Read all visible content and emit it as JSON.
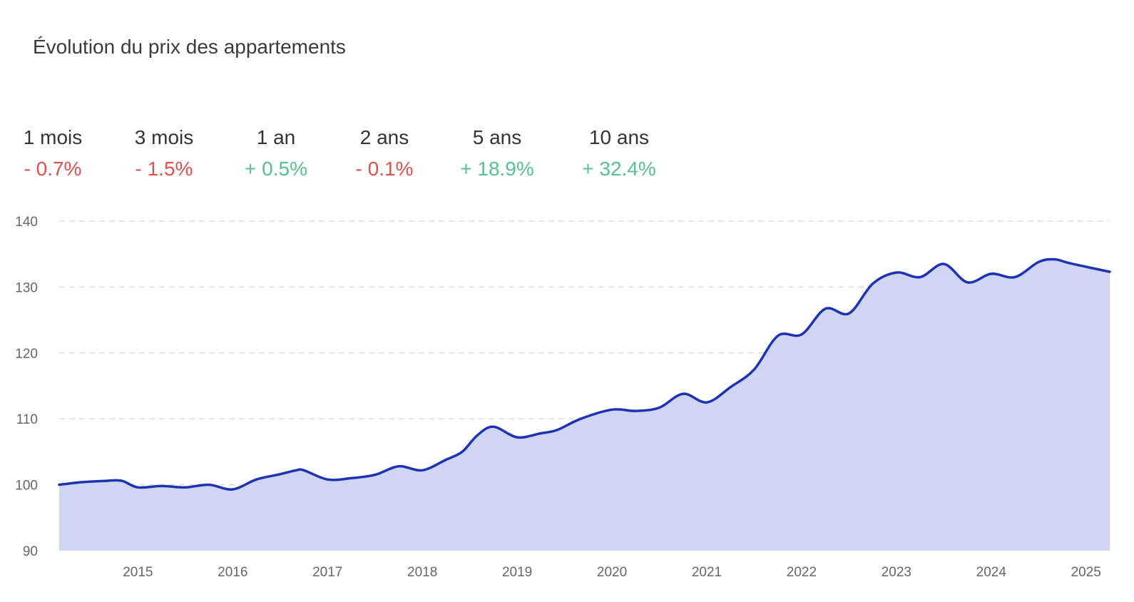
{
  "title": "Évolution du prix des appartements",
  "colors": {
    "negative": "#d9534f",
    "positive": "#5bbf8f",
    "line": "#1e32b4",
    "area": "#d0d5f1",
    "grid": "#dcdcdc"
  },
  "periods": [
    {
      "label": "1 mois",
      "change": "- 0.7%",
      "trend": "negative"
    },
    {
      "label": "3 mois",
      "change": "- 1.5%",
      "trend": "negative"
    },
    {
      "label": "1 an",
      "change": "+ 0.5%",
      "trend": "positive"
    },
    {
      "label": "2 ans",
      "change": "- 0.1%",
      "trend": "negative"
    },
    {
      "label": "5 ans",
      "change": "+ 18.9%",
      "trend": "positive"
    },
    {
      "label": "10 ans",
      "change": "+ 32.4%",
      "trend": "positive"
    }
  ],
  "chart_data": {
    "type": "area",
    "title": "Évolution du prix des appartements",
    "xlabel": "",
    "ylabel": "",
    "ylim": [
      90,
      140
    ],
    "yticks": [
      90,
      100,
      110,
      120,
      130,
      140
    ],
    "xticks": [
      "2015",
      "2016",
      "2017",
      "2018",
      "2019",
      "2020",
      "2021",
      "2022",
      "2023",
      "2024",
      "2025"
    ],
    "xlim": [
      2014.17,
      2025.25
    ],
    "grid": true,
    "series": [
      {
        "points": [
          [
            2014.17,
            100.0
          ],
          [
            2014.42,
            100.4
          ],
          [
            2014.67,
            100.6
          ],
          [
            2014.83,
            100.6
          ],
          [
            2015.0,
            99.6
          ],
          [
            2015.25,
            99.8
          ],
          [
            2015.5,
            99.6
          ],
          [
            2015.75,
            100.0
          ],
          [
            2016.0,
            99.3
          ],
          [
            2016.25,
            100.8
          ],
          [
            2016.5,
            101.6
          ],
          [
            2016.67,
            102.2
          ],
          [
            2016.75,
            102.2
          ],
          [
            2017.0,
            100.8
          ],
          [
            2017.25,
            101.0
          ],
          [
            2017.5,
            101.5
          ],
          [
            2017.75,
            102.8
          ],
          [
            2018.0,
            102.2
          ],
          [
            2018.25,
            103.8
          ],
          [
            2018.42,
            105.0
          ],
          [
            2018.58,
            107.5
          ],
          [
            2018.75,
            108.8
          ],
          [
            2019.0,
            107.2
          ],
          [
            2019.25,
            107.8
          ],
          [
            2019.42,
            108.3
          ],
          [
            2019.67,
            110.0
          ],
          [
            2020.0,
            111.4
          ],
          [
            2020.25,
            111.2
          ],
          [
            2020.5,
            111.7
          ],
          [
            2020.75,
            113.8
          ],
          [
            2021.0,
            112.5
          ],
          [
            2021.25,
            114.8
          ],
          [
            2021.5,
            117.5
          ],
          [
            2021.75,
            122.6
          ],
          [
            2022.0,
            122.8
          ],
          [
            2022.25,
            126.7
          ],
          [
            2022.5,
            126.0
          ],
          [
            2022.75,
            130.5
          ],
          [
            2023.0,
            132.2
          ],
          [
            2023.25,
            131.5
          ],
          [
            2023.5,
            133.5
          ],
          [
            2023.75,
            130.7
          ],
          [
            2024.0,
            132.0
          ],
          [
            2024.25,
            131.5
          ],
          [
            2024.5,
            133.8
          ],
          [
            2024.67,
            134.2
          ],
          [
            2024.83,
            133.6
          ],
          [
            2025.25,
            132.3
          ]
        ]
      }
    ]
  }
}
